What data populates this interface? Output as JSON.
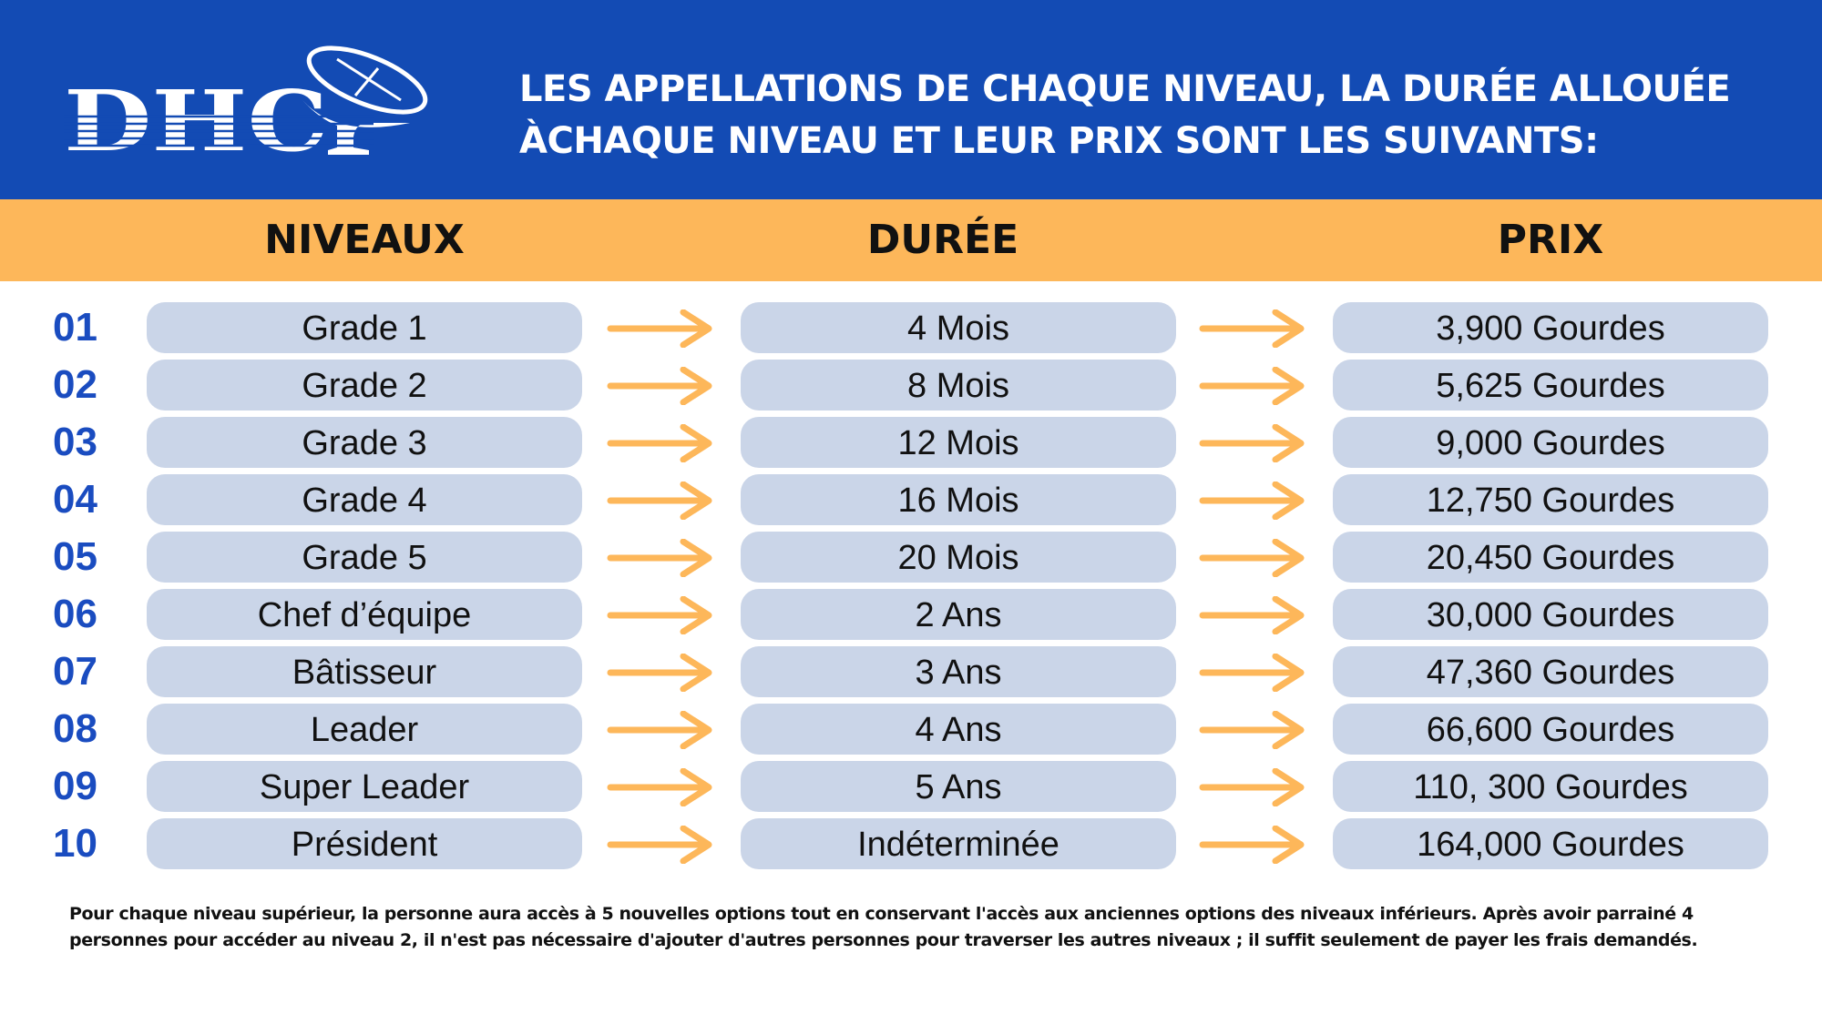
{
  "header": {
    "logo_text": "DHCP",
    "title_line1": "LES APPELLATIONS DE CHAQUE NIVEAU, LA DURÉE ALLOUÉE",
    "title_line2": "ÀCHAQUE NIVEAU ET LEUR PRIX SONT LES SUIVANTS:"
  },
  "columns": {
    "niveaux": "NIVEAUX",
    "duree": "DURÉE",
    "prix": "PRIX"
  },
  "rows": [
    {
      "num": "01",
      "niveau": "Grade 1",
      "duree": "4 Mois",
      "prix": "3,900 Gourdes"
    },
    {
      "num": "02",
      "niveau": "Grade 2",
      "duree": "8 Mois",
      "prix": "5,625 Gourdes"
    },
    {
      "num": "03",
      "niveau": "Grade 3",
      "duree": "12 Mois",
      "prix": "9,000 Gourdes"
    },
    {
      "num": "04",
      "niveau": "Grade 4",
      "duree": "16 Mois",
      "prix": "12,750 Gourdes"
    },
    {
      "num": "05",
      "niveau": "Grade 5",
      "duree": "20 Mois",
      "prix": "20,450 Gourdes"
    },
    {
      "num": "06",
      "niveau": "Chef d’équipe",
      "duree": "2 Ans",
      "prix": "30,000 Gourdes"
    },
    {
      "num": "07",
      "niveau": "Bâtisseur",
      "duree": "3 Ans",
      "prix": "47,360 Gourdes"
    },
    {
      "num": "08",
      "niveau": "Leader",
      "duree": "4 Ans",
      "prix": "66,600 Gourdes"
    },
    {
      "num": "09",
      "niveau": "Super Leader",
      "duree": "5 Ans",
      "prix": "110, 300 Gourdes"
    },
    {
      "num": "10",
      "niveau": "Président",
      "duree": "Indéterminée",
      "prix": "164,000 Gourdes"
    }
  ],
  "footer": {
    "note": "Pour chaque niveau supérieur, la personne aura accès à 5 nouvelles options tout en conservant l'accès aux anciennes options des niveaux inférieurs. Après avoir parrainé 4 personnes pour accéder au niveau 2, il n'est pas nécessaire d'ajouter d'autres personnes pour traverser les autres niveaux ; il suffit seulement de payer les frais demandés."
  },
  "colors": {
    "blue": "#134bb4",
    "orange": "#fdb75a",
    "pill": "#cad5e8",
    "number": "#1a4cc0"
  }
}
